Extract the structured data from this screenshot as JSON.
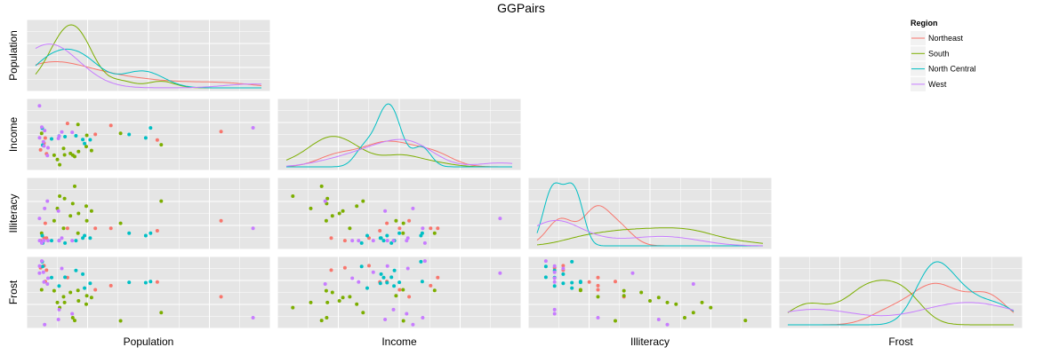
{
  "title": "GGPairs",
  "variables": [
    "Population",
    "Income",
    "Illiteracy",
    "Frost"
  ],
  "legend": {
    "title": "Region",
    "entries": [
      {
        "name": "Northeast",
        "color": "#F8766D"
      },
      {
        "name": "South",
        "color": "#7CAE00"
      },
      {
        "name": "North Central",
        "color": "#00BFC4"
      },
      {
        "name": "West",
        "color": "#C77CFF"
      }
    ]
  },
  "chart_data": {
    "type": "scatter",
    "layout": "pairs-lower-triangle-with-density-diagonal",
    "panel_background": "#E5E5E5",
    "grid": true,
    "ranges": {
      "Population": [
        0,
        22000
      ],
      "Income": [
        3000,
        6500
      ],
      "Illiteracy": [
        0.4,
        3.0
      ],
      "Frost": [
        0,
        190
      ]
    },
    "series": [
      {
        "name": "Northeast",
        "color": "#F8766D",
        "points": [
          {
            "Population": 3100,
            "Income": 5348,
            "Illiteracy": 1.1,
            "Frost": 139
          },
          {
            "Population": 1058,
            "Income": 3694,
            "Illiteracy": 0.7,
            "Frost": 161
          },
          {
            "Population": 5814,
            "Income": 4755,
            "Illiteracy": 1.1,
            "Frost": 103
          },
          {
            "Population": 812,
            "Income": 4281,
            "Illiteracy": 0.7,
            "Frost": 174
          },
          {
            "Population": 7333,
            "Income": 5237,
            "Illiteracy": 1.1,
            "Frost": 115
          },
          {
            "Population": 18076,
            "Income": 4903,
            "Illiteracy": 1.4,
            "Frost": 82
          },
          {
            "Population": 11860,
            "Income": 4449,
            "Illiteracy": 1.0,
            "Frost": 126
          },
          {
            "Population": 931,
            "Income": 4558,
            "Illiteracy": 1.3,
            "Frost": 127
          },
          {
            "Population": 472,
            "Income": 3907,
            "Illiteracy": 0.6,
            "Frost": 168
          }
        ]
      },
      {
        "name": "South",
        "color": "#7CAE00",
        "points": [
          {
            "Population": 3615,
            "Income": 3624,
            "Illiteracy": 2.1,
            "Frost": 20
          },
          {
            "Population": 2110,
            "Income": 3378,
            "Illiteracy": 1.9,
            "Frost": 65
          },
          {
            "Population": 579,
            "Income": 4809,
            "Illiteracy": 0.9,
            "Frost": 103
          },
          {
            "Population": 8277,
            "Income": 4815,
            "Illiteracy": 1.3,
            "Frost": 11
          },
          {
            "Population": 4931,
            "Income": 4091,
            "Illiteracy": 2.0,
            "Frost": 60
          },
          {
            "Population": 3387,
            "Income": 3712,
            "Illiteracy": 1.6,
            "Frost": 95
          },
          {
            "Population": 3806,
            "Income": 3545,
            "Illiteracy": 2.8,
            "Frost": 12
          },
          {
            "Population": 4122,
            "Income": 5299,
            "Illiteracy": 0.9,
            "Frost": 101
          },
          {
            "Population": 2341,
            "Income": 3098,
            "Illiteracy": 2.4,
            "Frost": 50
          },
          {
            "Population": 5441,
            "Income": 3875,
            "Illiteracy": 1.8,
            "Frost": 80
          },
          {
            "Population": 2715,
            "Income": 3983,
            "Illiteracy": 1.1,
            "Frost": 82
          },
          {
            "Population": 2816,
            "Income": 3635,
            "Illiteracy": 2.3,
            "Frost": 65
          },
          {
            "Population": 4173,
            "Income": 3821,
            "Illiteracy": 1.7,
            "Frost": 70
          },
          {
            "Population": 12237,
            "Income": 4188,
            "Illiteracy": 2.2,
            "Frost": 35
          },
          {
            "Population": 4981,
            "Income": 4701,
            "Illiteracy": 1.4,
            "Frost": 85
          },
          {
            "Population": 1799,
            "Income": 3617,
            "Illiteracy": 1.4,
            "Frost": 100
          }
        ]
      },
      {
        "name": "North Central",
        "color": "#00BFC4",
        "points": [
          {
            "Population": 11197,
            "Income": 5107,
            "Illiteracy": 0.9,
            "Frost": 127
          },
          {
            "Population": 5313,
            "Income": 4458,
            "Illiteracy": 0.7,
            "Frost": 122
          },
          {
            "Population": 2861,
            "Income": 4628,
            "Illiteracy": 0.5,
            "Frost": 140
          },
          {
            "Population": 2280,
            "Income": 4669,
            "Illiteracy": 0.6,
            "Frost": 114
          },
          {
            "Population": 9111,
            "Income": 4751,
            "Illiteracy": 0.9,
            "Frost": 125
          },
          {
            "Population": 3921,
            "Income": 4675,
            "Illiteracy": 0.6,
            "Frost": 160
          },
          {
            "Population": 4767,
            "Income": 4254,
            "Illiteracy": 0.8,
            "Frost": 108
          },
          {
            "Population": 1544,
            "Income": 4508,
            "Illiteracy": 0.6,
            "Frost": 139
          },
          {
            "Population": 637,
            "Income": 5087,
            "Illiteracy": 0.8,
            "Frost": 186
          },
          {
            "Population": 10735,
            "Income": 4561,
            "Illiteracy": 0.8,
            "Frost": 124
          },
          {
            "Population": 681,
            "Income": 4167,
            "Illiteracy": 0.5,
            "Frost": 172
          },
          {
            "Population": 4589,
            "Income": 4468,
            "Illiteracy": 0.7,
            "Frost": 149
          }
        ]
      },
      {
        "name": "West",
        "color": "#C77CFF",
        "points": [
          {
            "Population": 365,
            "Income": 6315,
            "Illiteracy": 1.5,
            "Frost": 152
          },
          {
            "Population": 2212,
            "Income": 4530,
            "Illiteracy": 1.8,
            "Frost": 15
          },
          {
            "Population": 21198,
            "Income": 5114,
            "Illiteracy": 1.1,
            "Frost": 20
          },
          {
            "Population": 2541,
            "Income": 4884,
            "Illiteracy": 0.7,
            "Frost": 166
          },
          {
            "Population": 868,
            "Income": 4963,
            "Illiteracy": 1.9,
            "Frost": 0
          },
          {
            "Population": 813,
            "Income": 4119,
            "Illiteracy": 0.6,
            "Frost": 126
          },
          {
            "Population": 746,
            "Income": 4347,
            "Illiteracy": 0.6,
            "Frost": 155
          },
          {
            "Population": 590,
            "Income": 5149,
            "Illiteracy": 0.5,
            "Frost": 188
          },
          {
            "Population": 1144,
            "Income": 3601,
            "Illiteracy": 2.2,
            "Frost": 120
          },
          {
            "Population": 2284,
            "Income": 4660,
            "Illiteracy": 0.6,
            "Frost": 44
          },
          {
            "Population": 1203,
            "Income": 4022,
            "Illiteracy": 0.6,
            "Frost": 137
          },
          {
            "Population": 3559,
            "Income": 4864,
            "Illiteracy": 0.6,
            "Frost": 32
          },
          {
            "Population": 376,
            "Income": 4566,
            "Illiteracy": 0.6,
            "Frost": 173
          }
        ]
      }
    ]
  }
}
